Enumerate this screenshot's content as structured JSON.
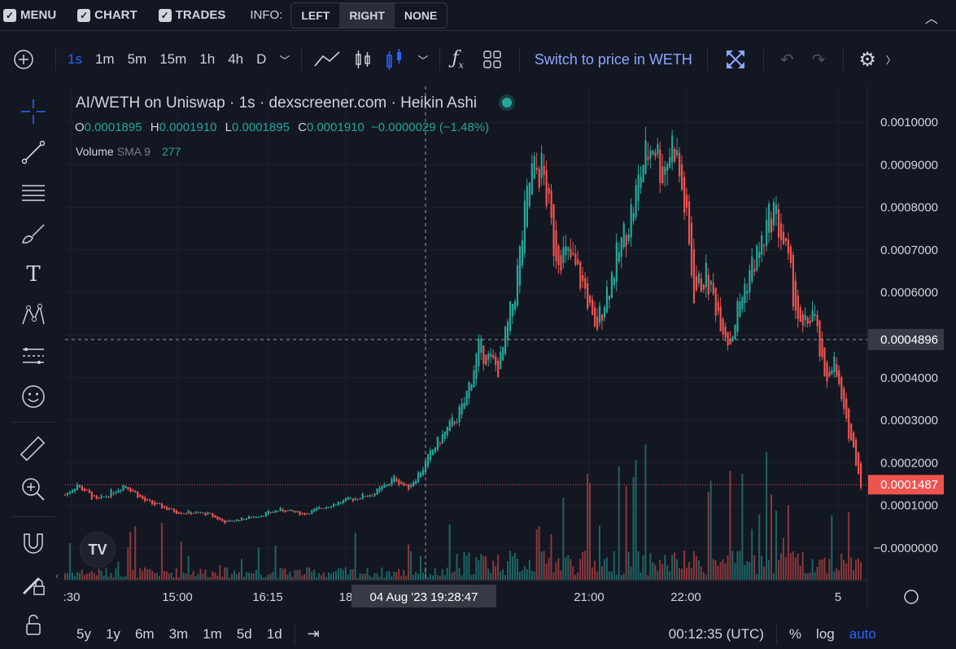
{
  "topbar": {
    "menu_label": "MENU",
    "chart_label": "CHART",
    "trades_label": "TRADES",
    "info_label": "INFO:",
    "info_options": [
      "LEFT",
      "RIGHT",
      "NONE"
    ],
    "info_selected": "RIGHT"
  },
  "toolbar": {
    "intervals": [
      "1s",
      "1m",
      "5m",
      "15m",
      "1h",
      "4h",
      "D"
    ],
    "active_interval": "1s",
    "switch_price_label": "Switch to price in WETH"
  },
  "legend": {
    "title": "AI/WETH on Uniswap · 1s · dexscreener.com · Heikin Ashi",
    "o_label": "O",
    "o_value": "0.0001895",
    "h_label": "H",
    "h_value": "0.0001910",
    "l_label": "L",
    "l_value": "0.0001895",
    "c_label": "C",
    "c_value": "0.0001910",
    "change": "−0.0000029 (−1.48%)",
    "volume_label": "Volume",
    "sma_label": "SMA 9",
    "volume_value": "277"
  },
  "chart_data": {
    "type": "candlestick",
    "title": "AI/WETH on Uniswap · 1s · dexscreener.com · Heikin Ashi",
    "x_ticks": [
      ":30",
      "15:00",
      "16:15",
      "18",
      "21:00",
      "22:00",
      "5"
    ],
    "y_ticks": [
      "0.0010000",
      "0.0009000",
      "0.0008000",
      "0.0007000",
      "0.0006000",
      "0.0005000",
      "0.0004000",
      "0.0003000",
      "0.0002000",
      "0.0001000",
      "−0.0000000"
    ],
    "crosshair_price": "0.0004896",
    "last_price": "0.0001487",
    "crosshair_time": "04 Aug '23   19:28:47",
    "price_path": [
      [
        0.0,
        0.000125
      ],
      [
        0.015,
        0.00015
      ],
      [
        0.04,
        0.00011
      ],
      [
        0.075,
        0.00015
      ],
      [
        0.1,
        0.00011
      ],
      [
        0.14,
        8.5e-05
      ],
      [
        0.18,
        8e-05
      ],
      [
        0.2,
        6e-05
      ],
      [
        0.24,
        7.5e-05
      ],
      [
        0.27,
        9e-05
      ],
      [
        0.3,
        8e-05
      ],
      [
        0.33,
        0.0001
      ],
      [
        0.36,
        0.000115
      ],
      [
        0.39,
        0.00013
      ],
      [
        0.415,
        0.000165
      ],
      [
        0.43,
        0.00014
      ],
      [
        0.45,
        0.00019
      ],
      [
        0.465,
        0.00024
      ],
      [
        0.485,
        0.00029
      ],
      [
        0.5,
        0.00033
      ],
      [
        0.52,
        0.00047
      ],
      [
        0.545,
        0.00042
      ],
      [
        0.565,
        0.0006
      ],
      [
        0.585,
        0.00088
      ],
      [
        0.6,
        0.00089
      ],
      [
        0.615,
        0.0007
      ],
      [
        0.635,
        0.00068
      ],
      [
        0.655,
        0.0006
      ],
      [
        0.665,
        0.0005
      ],
      [
        0.68,
        0.0006
      ],
      [
        0.7,
        0.00072
      ],
      [
        0.715,
        0.00081
      ],
      [
        0.725,
        0.0009
      ],
      [
        0.74,
        0.00096
      ],
      [
        0.75,
        0.00088
      ],
      [
        0.765,
        0.00096
      ],
      [
        0.78,
        0.00078
      ],
      [
        0.79,
        0.0006
      ],
      [
        0.805,
        0.00064
      ],
      [
        0.82,
        0.00056
      ],
      [
        0.835,
        0.00048
      ],
      [
        0.845,
        0.00056
      ],
      [
        0.86,
        0.00065
      ],
      [
        0.875,
        0.00071
      ],
      [
        0.89,
        0.0008
      ],
      [
        0.905,
        0.0007
      ],
      [
        0.925,
        0.0005
      ],
      [
        0.94,
        0.00056
      ],
      [
        0.955,
        0.00038
      ],
      [
        0.965,
        0.00045
      ],
      [
        0.98,
        0.0003
      ],
      [
        0.99,
        0.00024
      ],
      [
        1.0,
        0.000149
      ]
    ],
    "ylim": [
      -1e-05,
      0.00106
    ]
  },
  "bottom": {
    "ranges": [
      "5y",
      "1y",
      "6m",
      "3m",
      "1m",
      "5d",
      "1d"
    ],
    "clock": "00:12:35 (UTC)",
    "percent_label": "%",
    "log_label": "log",
    "auto_label": "auto"
  },
  "colors": {
    "up": "#26a69a",
    "down": "#ef5350",
    "accent": "#2962ff",
    "background": "#131722"
  }
}
